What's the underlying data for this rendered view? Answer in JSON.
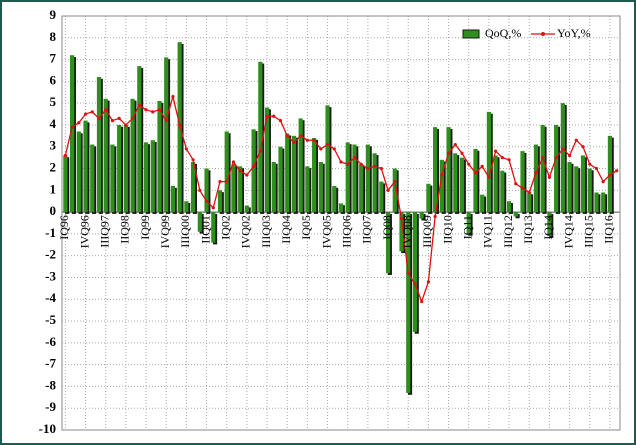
{
  "chart_data": {
    "type": "bar_line",
    "categories": [
      "IQ96",
      null,
      null,
      "IVQ96",
      null,
      null,
      "IIIQ97",
      null,
      null,
      "IIQ98",
      null,
      null,
      "IQ99",
      null,
      null,
      "IVQ99",
      null,
      null,
      "IIIQ00",
      null,
      null,
      "IIQ01",
      null,
      null,
      "IQ02",
      null,
      null,
      "IVQ02",
      null,
      null,
      "IIIQ03",
      null,
      null,
      "IIQ04",
      null,
      null,
      "IQ05",
      null,
      null,
      "IVQ05",
      null,
      null,
      "IIIQ06",
      null,
      null,
      "IIQ07",
      null,
      null,
      "IQ08",
      null,
      null,
      "IVQ08",
      null,
      null,
      "IIIQ09",
      null,
      null,
      "IIQ10",
      null,
      null,
      "IQ11",
      null,
      null,
      "IVQ11",
      null,
      null,
      "IIIQ12",
      null,
      null,
      "IIQ13",
      null,
      null,
      "IQ14",
      null,
      null,
      "IVQ14",
      null,
      null,
      "IIIQ15",
      null,
      null,
      "IIQ16",
      null
    ],
    "series": [
      {
        "name": "QoQ,%",
        "kind": "bar",
        "color": "#2f8f1c",
        "values": [
          2.6,
          7.2,
          3.7,
          4.2,
          3.1,
          6.2,
          5.2,
          3.1,
          4.0,
          4.0,
          5.2,
          6.7,
          3.2,
          3.3,
          5.1,
          7.1,
          1.2,
          7.8,
          0.5,
          2.3,
          -0.9,
          2.0,
          -1.4,
          1.0,
          3.7,
          2.2,
          2.1,
          0.3,
          3.8,
          6.9,
          4.8,
          2.3,
          3.0,
          3.6,
          3.5,
          4.3,
          2.1,
          3.4,
          2.3,
          4.9,
          1.2,
          0.4,
          3.2,
          3.1,
          2.2,
          3.1,
          2.7,
          1.4,
          -2.8,
          2.0,
          -1.8,
          -8.3,
          -5.5,
          -0.3,
          1.3,
          3.9,
          2.4,
          3.9,
          2.7,
          2.5,
          -1.0,
          2.9,
          0.8,
          4.6,
          2.6,
          1.9,
          0.5,
          -0.2,
          2.8,
          0.9,
          3.1,
          4.0,
          -1.1,
          4.0,
          5.0,
          2.3,
          2.1,
          2.6,
          2.0,
          0.9,
          0.9,
          3.5,
          null
        ]
      },
      {
        "name": "YoY,%",
        "kind": "line",
        "color": "#e01010",
        "values": [
          2.6,
          3.9,
          4.1,
          4.5,
          4.6,
          4.3,
          4.7,
          4.2,
          4.3,
          4.0,
          4.3,
          4.9,
          4.7,
          4.6,
          4.7,
          4.2,
          5.3,
          4.0,
          2.9,
          2.4,
          1.0,
          0.5,
          0.2,
          1.4,
          1.4,
          2.3,
          1.9,
          1.7,
          2.1,
          2.8,
          4.4,
          4.4,
          4.2,
          3.5,
          3.2,
          3.5,
          3.3,
          3.3,
          2.9,
          3.1,
          2.9,
          2.3,
          2.2,
          2.5,
          2.2,
          2.0,
          2.1,
          2.0,
          1.0,
          1.4,
          -0.3,
          -2.8,
          -3.3,
          -4.1,
          -3.2,
          -0.2,
          1.7,
          2.7,
          3.1,
          2.7,
          2.2,
          1.8,
          2.1,
          1.6,
          2.8,
          2.5,
          2.4,
          1.3,
          1.1,
          0.9,
          1.8,
          2.5,
          1.6,
          2.5,
          2.9,
          2.6,
          3.3,
          3.0,
          2.2,
          2.0,
          1.4,
          1.7,
          1.9
        ]
      }
    ],
    "ylim": [
      -10,
      9
    ],
    "yticks": [
      -10,
      -9,
      -8,
      -7,
      -6,
      -5,
      -4,
      -3,
      -2,
      -1,
      0,
      1,
      2,
      3,
      4,
      5,
      6,
      7,
      8,
      9
    ],
    "grid": true,
    "legend": "top-right"
  }
}
